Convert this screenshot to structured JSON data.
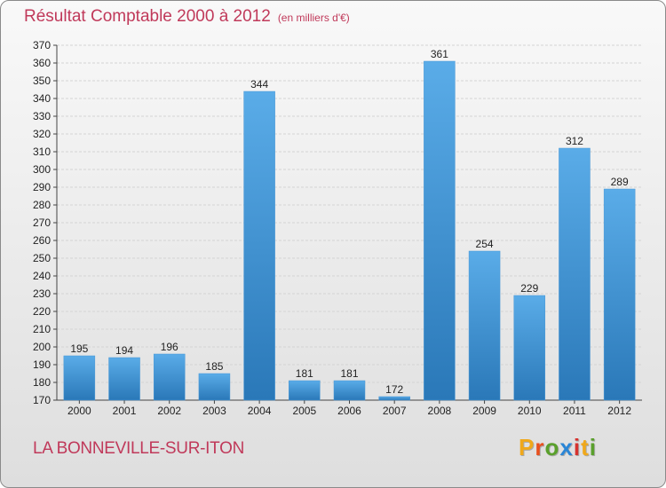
{
  "title": "Résultat Comptable 2000 à 2012",
  "unit": "(en milliers d'€)",
  "location": "LA BONNEVILLE-SUR-ITON",
  "logo": {
    "text": "Proxiti",
    "letters": [
      "P",
      "r",
      "o",
      "x",
      "i",
      "t",
      "i"
    ],
    "colors": [
      "#f0a81a",
      "#e8501e",
      "#5aa02c",
      "#2a86d6",
      "#d6332f",
      "#f0a81a",
      "#5aa02c"
    ]
  },
  "colors": {
    "bar_light": "#5aace8",
    "bar_dark": "#2a78b8",
    "title": "#c0395a",
    "grid": "#d4d4d4",
    "axis": "#444444"
  },
  "chart_data": {
    "type": "bar",
    "title": "Résultat Comptable 2000 à 2012",
    "subtitle": "(en milliers d'€)",
    "xlabel": "",
    "ylabel": "",
    "categories": [
      "2000",
      "2001",
      "2002",
      "2003",
      "2004",
      "2005",
      "2006",
      "2007",
      "2008",
      "2009",
      "2010",
      "2011",
      "2012"
    ],
    "values": [
      195,
      194,
      196,
      185,
      344,
      181,
      181,
      172,
      361,
      254,
      229,
      312,
      289
    ],
    "ylim": [
      170,
      370
    ],
    "ytick_step": 10,
    "grid": true
  }
}
